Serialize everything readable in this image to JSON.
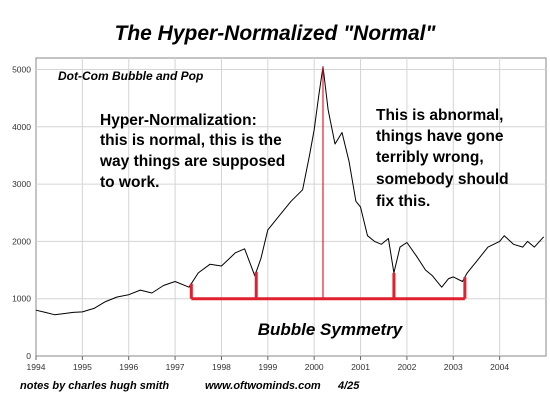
{
  "chart_data": {
    "type": "line",
    "title": "The Hyper-Normalized \"Normal\"",
    "series_label": "Dot-Com Bubble and Pop",
    "left_annotation": [
      "Hyper-Normalization:",
      "this is normal, this is the",
      "way things are supposed",
      "to work."
    ],
    "right_annotation": [
      "This is abnormal,",
      "things have gone",
      "terribly wrong,",
      "somebody should",
      "fix this."
    ],
    "symmetry_label": "Bubble Symmetry",
    "footer": [
      "notes by charles hugh smith",
      "www.oftwominds.com",
      "4/25"
    ],
    "x_ticks": [
      "1994",
      "1995",
      "1996",
      "1997",
      "1998",
      "1999",
      "2000",
      "2001",
      "2002",
      "2003",
      "2004"
    ],
    "y_ticks": [
      "0",
      "1000",
      "2000",
      "3000",
      "4000",
      "5000"
    ],
    "xlim": [
      1994,
      2005
    ],
    "ylim": [
      0,
      5200
    ],
    "grid": true,
    "line_color": "#000000",
    "accent_color": "#e0202e",
    "series": [
      {
        "x": [
          1994.0,
          1994.2,
          1994.4,
          1994.6,
          1994.8,
          1995.0,
          1995.25,
          1995.5,
          1995.75,
          1996.0,
          1996.25,
          1996.5,
          1996.75,
          1997.0,
          1997.3,
          1997.5,
          1997.75,
          1998.0,
          1998.3,
          1998.5,
          1998.72,
          1998.85,
          1999.0,
          1999.25,
          1999.5,
          1999.75,
          1999.9,
          2000.0,
          2000.1,
          2000.19,
          2000.3,
          2000.45,
          2000.6,
          2000.75,
          2000.9,
          2001.0,
          2001.15,
          2001.3,
          2001.45,
          2001.6,
          2001.72,
          2001.85,
          2002.0,
          2002.2,
          2002.4,
          2002.55,
          2002.75,
          2002.9,
          2003.0,
          2003.2,
          2003.3,
          2003.5,
          2003.75,
          2004.0,
          2004.1,
          2004.3,
          2004.5,
          2004.6,
          2004.75,
          2004.95
        ],
        "y": [
          800,
          760,
          720,
          740,
          760,
          770,
          830,
          950,
          1030,
          1070,
          1150,
          1100,
          1230,
          1300,
          1200,
          1450,
          1600,
          1570,
          1800,
          1870,
          1400,
          1700,
          2200,
          2450,
          2700,
          2900,
          3500,
          3950,
          4550,
          5050,
          4300,
          3700,
          3900,
          3400,
          2700,
          2600,
          2100,
          2000,
          1950,
          2050,
          1450,
          1900,
          1980,
          1750,
          1500,
          1400,
          1200,
          1350,
          1380,
          1300,
          1450,
          1650,
          1900,
          2000,
          2100,
          1950,
          1900,
          2000,
          1900,
          2080
        ]
      }
    ],
    "symmetry_markers": [
      1997.35,
      1998.75,
      2000.19,
      2001.72,
      2003.25
    ],
    "symmetry_baseline": 1000,
    "peak_marker": 2000.19
  }
}
